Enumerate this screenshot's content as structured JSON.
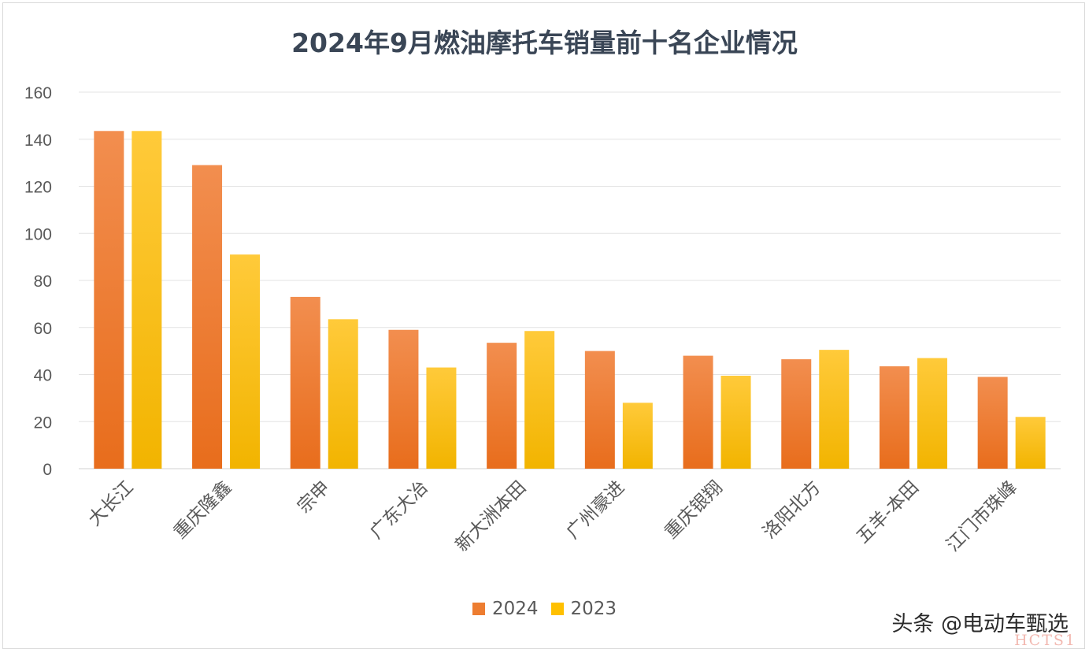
{
  "chart_data": {
    "type": "bar",
    "title": "2024年9月燃油摩托车销量前十名企业情况",
    "xlabel": "",
    "ylabel": "",
    "ylim": [
      0,
      160
    ],
    "yticks": [
      0,
      20,
      40,
      60,
      80,
      100,
      120,
      140,
      160
    ],
    "grid": true,
    "legend_position": "bottom",
    "categories": [
      "大长江",
      "重庆隆鑫",
      "宗申",
      "广东大冶",
      "新大洲本田",
      "广州豪进",
      "重庆银翔",
      "洛阳北方",
      "五羊-本田",
      "江门市珠峰"
    ],
    "series": [
      {
        "name": "2024",
        "color": "#ed7d31",
        "values": [
          143.5,
          129,
          73,
          59,
          53.5,
          50,
          48,
          46.5,
          43.5,
          39
        ]
      },
      {
        "name": "2023",
        "color": "#ffc000",
        "values": [
          143.5,
          91,
          63.5,
          43,
          58.5,
          28,
          39.5,
          50.5,
          47,
          22
        ]
      }
    ]
  },
  "watermark": "头条 @电动车甄选",
  "corner_mark": "HCTS1"
}
